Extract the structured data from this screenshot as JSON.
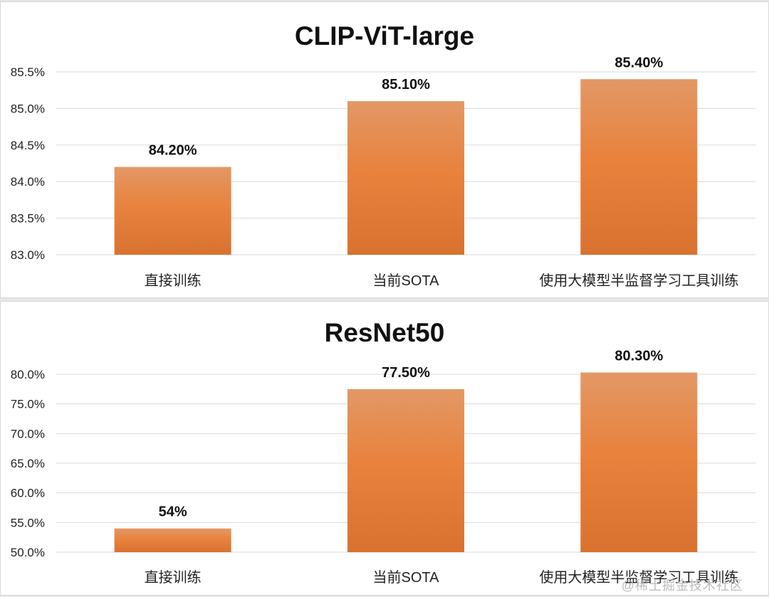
{
  "chart_data": [
    {
      "type": "bar",
      "title": "CLIP-ViT-large",
      "categories": [
        "直接训练",
        "当前SOTA",
        "使用大模型半监督学习工具训练"
      ],
      "series": [
        {
          "values": [
            84.2,
            85.1,
            85.4
          ]
        }
      ],
      "data_labels": [
        "84.20%",
        "85.10%",
        "85.40%"
      ],
      "ylim": [
        83.0,
        85.5
      ],
      "yticks": [
        83.0,
        83.5,
        84.0,
        84.5,
        85.0,
        85.5
      ],
      "ytick_labels": [
        "83.0%",
        "83.5%",
        "84.0%",
        "84.5%",
        "85.0%",
        "85.5%"
      ],
      "grid": true,
      "xlabel": "",
      "ylabel": ""
    },
    {
      "type": "bar",
      "title": "ResNet50",
      "categories": [
        "直接训练",
        "当前SOTA",
        "使用大模型半监督学习工具训练"
      ],
      "series": [
        {
          "values": [
            54.0,
            77.5,
            80.3
          ]
        }
      ],
      "data_labels": [
        "54%",
        "77.50%",
        "80.30%"
      ],
      "ylim": [
        50.0,
        80.0
      ],
      "yticks": [
        50.0,
        55.0,
        60.0,
        65.0,
        70.0,
        75.0,
        80.0
      ],
      "ytick_labels": [
        "50.0%",
        "55.0%",
        "60.0%",
        "65.0%",
        "70.0%",
        "75.0%",
        "80.0%"
      ],
      "grid": true,
      "xlabel": "",
      "ylabel": ""
    }
  ],
  "colors": {
    "bar_top": "#E39866",
    "bar_mid": "#E8823D",
    "bar_bottom": "#D97230",
    "grid": "#d9d9d9"
  },
  "watermark": "@稀土掘金技术社区"
}
